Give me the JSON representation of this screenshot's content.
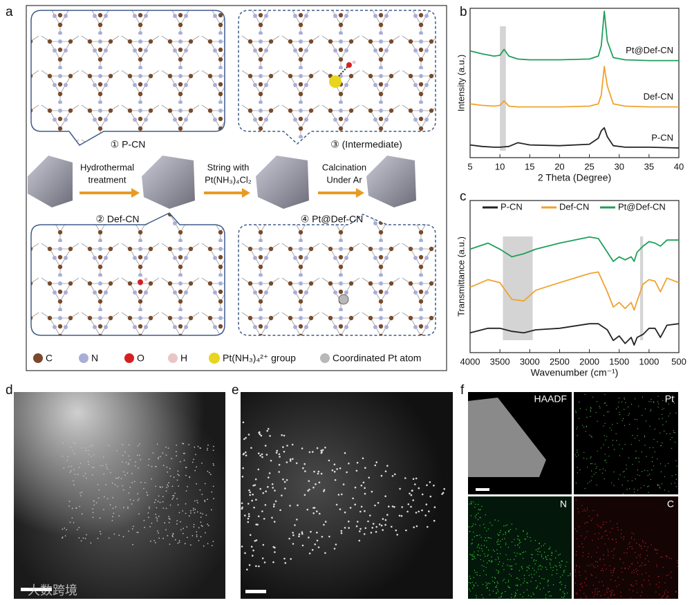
{
  "panel_labels": [
    "a",
    "b",
    "c",
    "d",
    "e",
    "f"
  ],
  "schematic": {
    "stages": [
      "① P-CN",
      "② Def-CN",
      "③ (Intermediate)",
      "④ Pt@Def-CN"
    ],
    "steps": [
      [
        "Hydrothermal",
        "treatment"
      ],
      [
        "String with",
        "Pt(NH₃)₄Cl₂"
      ],
      [
        "Calcination",
        "Under Ar"
      ]
    ],
    "legend": [
      "C",
      "N",
      "O",
      "H",
      "Pt(NH₃)₄²⁺ group",
      "Coordinated Pt atom"
    ]
  },
  "chart_data": [
    {
      "type": "line",
      "xlabel": "2 Theta (Degree)",
      "ylabel": "Intensity (a.u.)",
      "x": [
        5,
        7,
        9,
        10,
        10.7,
        11.5,
        13,
        15,
        20,
        25,
        26.5,
        27,
        27.5,
        28,
        29,
        31,
        35,
        40
      ],
      "xlim": [
        5,
        40
      ],
      "xticks": [
        5,
        10,
        15,
        20,
        25,
        30,
        35,
        40
      ],
      "ylim": [
        0,
        10
      ],
      "legend": "inline",
      "highlight_bands": [
        [
          10,
          11
        ]
      ],
      "series": [
        {
          "name": "P-CN",
          "color": "#222222",
          "values": [
            0.85,
            0.75,
            0.7,
            0.7,
            0.72,
            0.75,
            1.0,
            0.85,
            0.8,
            0.9,
            1.3,
            1.8,
            2.0,
            1.4,
            0.8,
            0.7,
            0.7,
            0.65
          ]
        },
        {
          "name": "Def-CN",
          "color": "#f0a22e",
          "values": [
            3.6,
            3.5,
            3.45,
            3.5,
            3.8,
            3.45,
            3.4,
            3.4,
            3.4,
            3.45,
            3.6,
            4.2,
            6.1,
            4.8,
            3.6,
            3.45,
            3.4,
            3.4
          ]
        },
        {
          "name": "Pt@Def-CN",
          "color": "#1f9e5a",
          "values": [
            7.15,
            6.95,
            6.8,
            6.85,
            7.25,
            6.8,
            6.6,
            6.55,
            6.55,
            6.6,
            6.8,
            7.5,
            9.8,
            7.8,
            6.7,
            6.55,
            6.5,
            6.5
          ]
        }
      ]
    },
    {
      "type": "line",
      "xlabel": "Wavenumber (cm⁻¹)",
      "ylabel": "Transmittance (a.u.)",
      "x": [
        4000,
        3700,
        3500,
        3300,
        3100,
        2900,
        2500,
        2000,
        1850,
        1700,
        1600,
        1500,
        1400,
        1300,
        1250,
        1200,
        1100,
        1000,
        900,
        810,
        700,
        500
      ],
      "xlim": [
        4000,
        500
      ],
      "xticks": [
        4000,
        3500,
        3000,
        2500,
        2000,
        1500,
        1000,
        500
      ],
      "ylim": [
        0,
        10
      ],
      "legend": "top",
      "highlight_bands": [
        [
          3450,
          2950
        ],
        [
          1150,
          1100
        ]
      ],
      "series": [
        {
          "name": "P-CN",
          "color": "#222222",
          "values": [
            1.3,
            1.6,
            1.6,
            1.4,
            1.3,
            1.5,
            1.6,
            1.9,
            1.9,
            1.5,
            0.8,
            1.1,
            0.6,
            1.0,
            0.5,
            1.0,
            1.2,
            1.6,
            1.6,
            1.0,
            1.8,
            1.9
          ]
        },
        {
          "name": "Def-CN",
          "color": "#f0a22e",
          "values": [
            4.3,
            4.8,
            4.6,
            3.5,
            3.4,
            4.1,
            4.6,
            5.2,
            5.3,
            4.0,
            3.0,
            3.3,
            2.9,
            3.3,
            2.8,
            3.4,
            4.5,
            4.8,
            4.7,
            4.0,
            4.9,
            4.6
          ]
        },
        {
          "name": "Pt@Def-CN",
          "color": "#1f9e5a",
          "values": [
            6.8,
            7.2,
            6.8,
            6.3,
            6.5,
            6.8,
            7.2,
            7.6,
            7.5,
            6.6,
            6.0,
            6.3,
            6.1,
            6.3,
            6.0,
            6.6,
            7.0,
            7.3,
            7.2,
            7.0,
            7.4,
            7.4
          ]
        }
      ]
    }
  ],
  "eds_labels": [
    "HAADF",
    "Pt",
    "N",
    "C"
  ],
  "watermark": "大数跨境"
}
